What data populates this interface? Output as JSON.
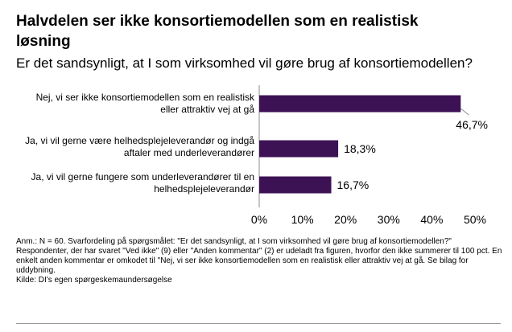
{
  "header": {
    "title": "Halvdelen ser ikke konsortiemodellen som en realistisk løsning",
    "subtitle": "Er det sandsynligt, at I som virksomhed vil gøre brug af konsortiemodellen?"
  },
  "colors": {
    "bar": "#3d1255",
    "axis": "#8c8c8c",
    "leader": "#8c8c8c"
  },
  "chart_data": {
    "type": "bar",
    "orientation": "horizontal",
    "categories": [
      "Nej, vi ser ikke konsortiemodellen som en realistisk eller attraktiv vej at gå",
      "Ja, vi vil gerne være helhedsplejeleverandør og indgå aftaler med underleverandører",
      "Ja, vi vil gerne fungere som underleverandører til en helhedsplejeleverandør"
    ],
    "values": [
      46.7,
      18.3,
      16.7
    ],
    "value_labels": [
      "46,7%",
      "18,3%",
      "16,7%"
    ],
    "xlim": [
      0,
      50
    ],
    "xticks": [
      0,
      10,
      20,
      30,
      40,
      50
    ],
    "xtick_labels": [
      "0%",
      "10%",
      "20%",
      "30%",
      "40%",
      "50%"
    ],
    "title": "Halvdelen ser ikke konsortiemodellen som en realistisk løsning",
    "xlabel": "",
    "ylabel": ""
  },
  "footer": {
    "note": "Anm.: N = 60. Svarfordeling på spørgsmålet: \"Er det sandsynligt, at I som virksomhed vil gøre brug af konsortiemodellen?\" Respondenter, der har svaret \"Ved ikke\" (9) eller \"Anden kommentar\" (2) er udeladt fra figuren, hvorfor den ikke summerer til 100 pct. En enkelt anden kommentar er omkodet til \"Nej, vi ser ikke konsortiemodellen som en realistisk eller attraktiv vej at gå. Se bilag for uddybning.",
    "source": "Kilde: DI's egen spørgeskemaundersøgelse"
  }
}
